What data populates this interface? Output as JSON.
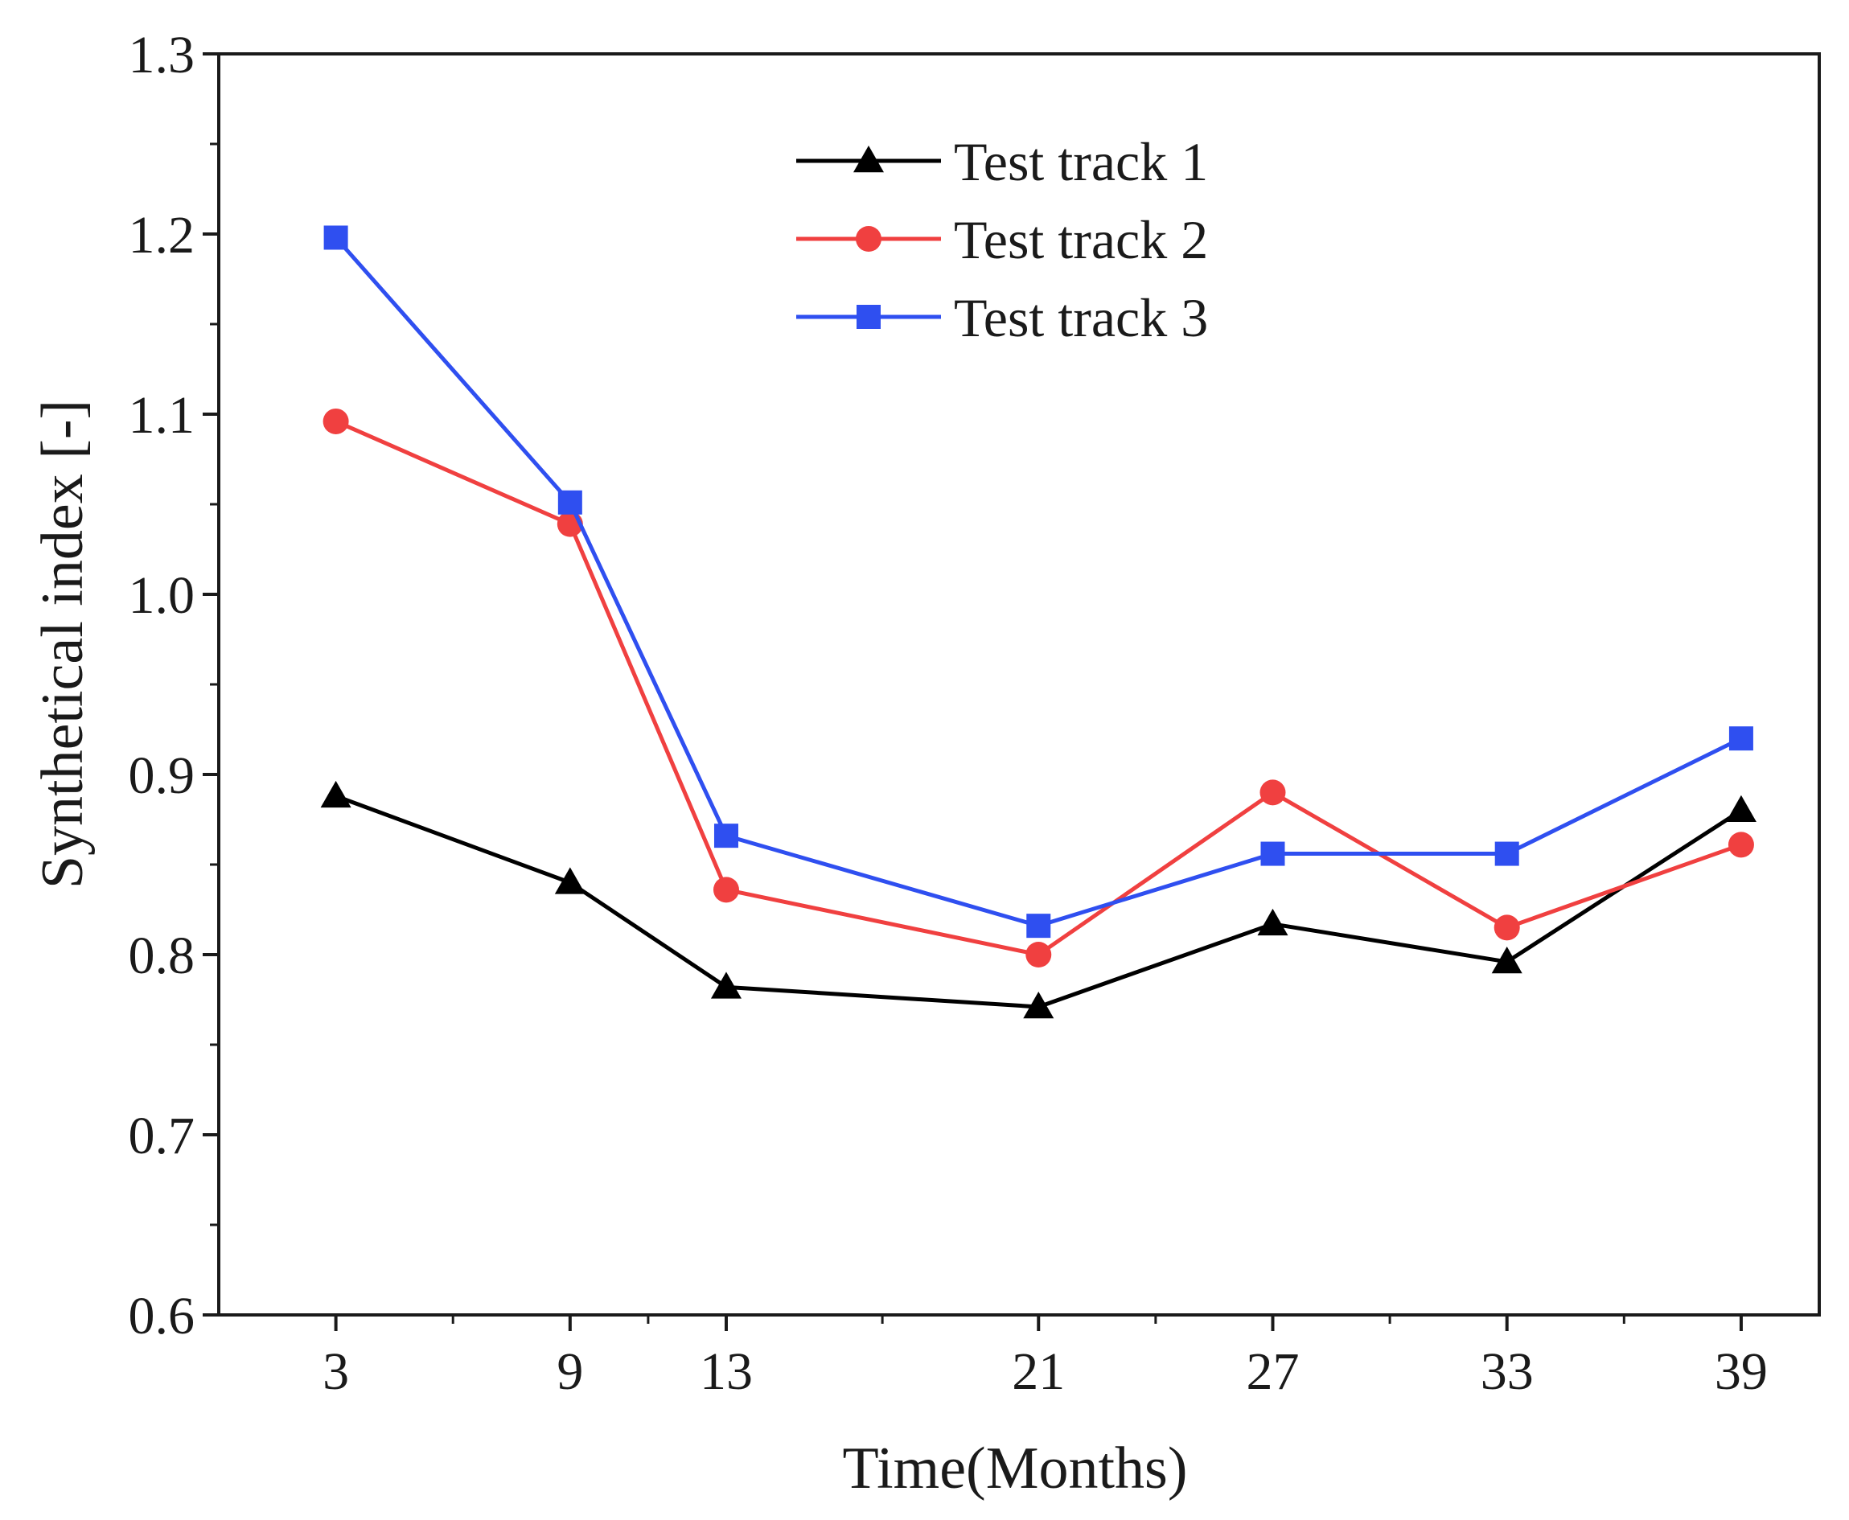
{
  "chart_data": {
    "type": "line",
    "title": "",
    "xlabel": "Time(Months)",
    "ylabel": "Synthetical index [-]",
    "x": [
      3,
      9,
      13,
      21,
      27,
      33,
      39
    ],
    "x_ticks": [
      3,
      9,
      13,
      21,
      27,
      33,
      39
    ],
    "x_tick_labels": [
      "3",
      "9",
      "13",
      "21",
      "27",
      "33",
      "39"
    ],
    "xlim": [
      0,
      41
    ],
    "ylim": [
      0.6,
      1.3
    ],
    "y_ticks": [
      0.6,
      0.7,
      0.8,
      0.9,
      1.0,
      1.1,
      1.2,
      1.3
    ],
    "y_tick_labels": [
      "0.6",
      "0.7",
      "0.8",
      "0.9",
      "1.0",
      "1.1",
      "1.2",
      "1.3"
    ],
    "grid": false,
    "legend_position": "top-center",
    "series": [
      {
        "name": "Test track 1",
        "color": "#000000",
        "marker": "triangle",
        "values": [
          0.888,
          0.84,
          0.782,
          0.771,
          0.817,
          0.796,
          0.88
        ]
      },
      {
        "name": "Test track 2",
        "color": "#f04040",
        "marker": "circle",
        "values": [
          1.096,
          1.039,
          0.836,
          0.8,
          0.89,
          0.815,
          0.861
        ]
      },
      {
        "name": "Test track 3",
        "color": "#2f4ff0",
        "marker": "square",
        "values": [
          1.198,
          1.051,
          0.866,
          0.816,
          0.856,
          0.856,
          0.92
        ]
      }
    ]
  }
}
